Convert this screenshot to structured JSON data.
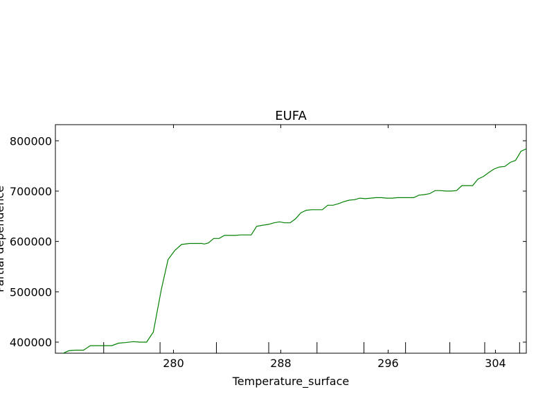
{
  "chart_data": {
    "type": "line",
    "title": "EUFA",
    "xlabel": "Temperature_surface",
    "ylabel": "Partial dependence",
    "xlim": [
      271.2,
      306.3
    ],
    "ylim": [
      378000,
      832000
    ],
    "x_ticks": [
      280,
      288,
      296,
      304
    ],
    "x_tick_labels": [
      "280",
      "288",
      "296",
      "304"
    ],
    "y_ticks": [
      400000,
      500000,
      600000,
      700000,
      800000
    ],
    "y_tick_labels": [
      "400000",
      "500000",
      "600000",
      "700000",
      "800000"
    ],
    "grid": false,
    "rug_x": [
      274.8,
      279.0,
      283.2,
      287.1,
      290.7,
      294.2,
      297.3,
      300.6,
      303.2,
      305.8
    ],
    "series": [
      {
        "color": "#008000",
        "x": [
          271.2,
          271.7,
          272.2,
          272.7,
          273.3,
          273.8,
          274.3,
          274.9,
          275.4,
          275.9,
          276.4,
          277.0,
          277.5,
          278.0,
          278.5,
          279.1,
          279.6,
          280.1,
          280.6,
          281.2,
          281.5,
          281.8,
          282.1,
          282.3,
          282.6,
          283.0,
          283.4,
          283.8,
          284.2,
          284.6,
          285.0,
          285.4,
          285.8,
          286.2,
          286.6,
          287.1,
          287.5,
          287.9,
          288.3,
          288.7,
          289.1,
          289.5,
          289.9,
          290.3,
          290.7,
          291.1,
          291.5,
          291.9,
          292.3,
          292.7,
          293.1,
          293.5,
          293.9,
          294.3,
          294.7,
          295.1,
          295.5,
          295.9,
          296.3,
          296.7,
          297.1,
          297.5,
          297.9,
          298.3,
          298.7,
          299.1,
          299.5,
          299.9,
          300.3,
          300.7,
          301.1,
          301.5,
          301.9,
          302.3,
          302.7,
          303.1,
          303.5,
          303.9,
          304.3,
          304.7,
          305.1,
          305.5,
          305.9,
          306.3
        ],
        "y": [
          377000,
          377000,
          383000,
          384000,
          384000,
          393000,
          393000,
          393000,
          393000,
          398000,
          399000,
          401000,
          400000,
          400000,
          420000,
          505000,
          564000,
          582000,
          594000,
          596000,
          596000,
          596000,
          596000,
          595000,
          597000,
          606000,
          606000,
          612000,
          612000,
          612000,
          613000,
          613000,
          613000,
          630000,
          632000,
          634000,
          637000,
          639000,
          637000,
          637000,
          645000,
          657000,
          662000,
          663000,
          663000,
          663000,
          672000,
          672000,
          675000,
          679000,
          682000,
          683000,
          686000,
          685000,
          686000,
          687000,
          687000,
          686000,
          686000,
          687000,
          687000,
          687000,
          687000,
          692000,
          693000,
          695000,
          701000,
          701000,
          700000,
          700000,
          701000,
          711000,
          711000,
          711000,
          724000,
          729000,
          737000,
          744000,
          748000,
          749000,
          757000,
          761000,
          779000,
          784000
        ]
      }
    ]
  }
}
